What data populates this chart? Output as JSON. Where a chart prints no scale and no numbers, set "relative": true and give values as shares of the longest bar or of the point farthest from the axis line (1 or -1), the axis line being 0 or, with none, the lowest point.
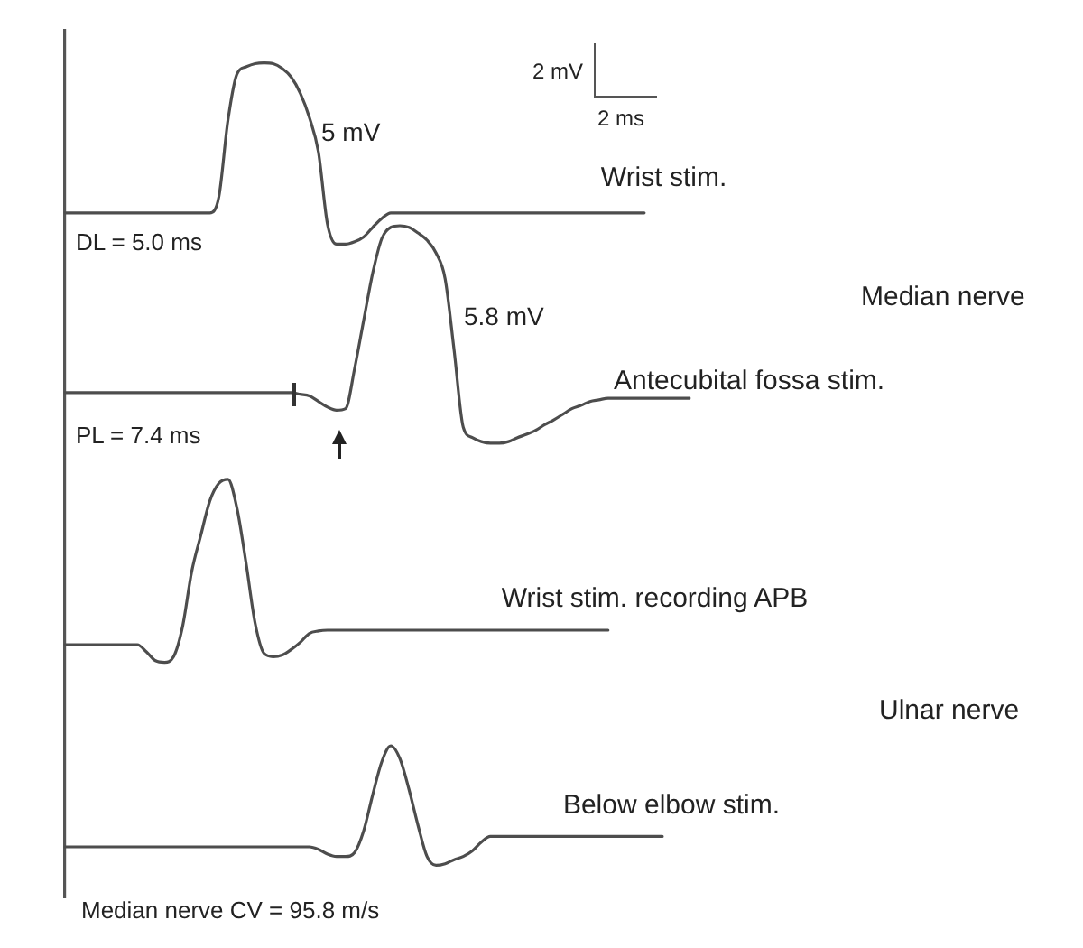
{
  "chart_data": {
    "type": "line",
    "relative": true,
    "categories": [
      null,
      null,
      null,
      null,
      null,
      null,
      null,
      null,
      null,
      null,
      null,
      null,
      null,
      null,
      null,
      null,
      null,
      null,
      null,
      null,
      null,
      null,
      null,
      null,
      null,
      null,
      null,
      null,
      null,
      null,
      null,
      null,
      null,
      null,
      null,
      null,
      null,
      null,
      null,
      null,
      null,
      null,
      null,
      null,
      null,
      null,
      null,
      null,
      null,
      null,
      null,
      null,
      null,
      null,
      null,
      null,
      null,
      null,
      null,
      null,
      null,
      null,
      null,
      null,
      null,
      null,
      null,
      null,
      null,
      null
    ],
    "series": [
      {
        "name": "Wrist stim.",
        "color": "#4d4d4d",
        "values": [
          0.813,
          0.813,
          0.813,
          0.813,
          0.813,
          0.813,
          0.813,
          0.813,
          0.813,
          0.813,
          0.813,
          0.813,
          0.813,
          0.813,
          0.813,
          0.813,
          0.813,
          0.833,
          0.928,
          0.986,
          0.995,
          0.999,
          1,
          0.999,
          0.993,
          0.982,
          0.962,
          0.932,
          0.889,
          0.799,
          0.774,
          0.774,
          0.777,
          0.783,
          0.795,
          0.806,
          0.813,
          0.813,
          0.813,
          0.813,
          0.813,
          0.813,
          0.813,
          0.813,
          0.813,
          0.813,
          0.813,
          0.813,
          0.813,
          0.813,
          0.813,
          0.813,
          0.813,
          0.813,
          0.813,
          0.813,
          0.813,
          0.813,
          0.813,
          0.813,
          0.813,
          0.813,
          0.813,
          0.813,
          0.813,
          null,
          null,
          null,
          null,
          null
        ]
      },
      {
        "name": "Antecubital fossa stim.",
        "color": "#4d4d4d",
        "values": [
          0.589,
          0.589,
          0.589,
          0.589,
          0.589,
          0.589,
          0.589,
          0.589,
          0.589,
          0.589,
          0.589,
          0.589,
          0.589,
          0.589,
          0.589,
          0.589,
          0.589,
          0.589,
          0.589,
          0.589,
          0.589,
          0.589,
          0.589,
          0.589,
          0.589,
          0.589,
          0.587,
          0.585,
          0.578,
          0.571,
          0.567,
          0.569,
          0.619,
          0.679,
          0.738,
          0.781,
          0.795,
          0.797,
          0.795,
          0.788,
          0.779,
          0.763,
          0.731,
          0.641,
          0.546,
          0.533,
          0.528,
          0.526,
          0.526,
          0.528,
          0.533,
          0.537,
          0.542,
          0.549,
          0.555,
          0.562,
          0.569,
          0.573,
          0.578,
          0.58,
          0.582,
          0.582,
          0.582,
          0.582,
          0.582,
          0.582,
          0.582,
          0.582,
          0.582,
          0.582
        ]
      },
      {
        "name": "Wrist stim. recording APB",
        "color": "#4d4d4d",
        "values": [
          0.275,
          0.275,
          0.275,
          0.275,
          0.275,
          0.275,
          0.275,
          0.275,
          0.275,
          0.266,
          0.255,
          0.253,
          0.26,
          0.298,
          0.366,
          0.411,
          0.454,
          0.476,
          0.481,
          0.445,
          0.377,
          0.302,
          0.264,
          0.26,
          0.262,
          0.269,
          0.278,
          0.289,
          0.292,
          0.293,
          0.293,
          0.293,
          0.293,
          0.293,
          0.293,
          0.293,
          0.293,
          0.293,
          0.293,
          0.293,
          0.293,
          0.293,
          0.293,
          0.293,
          0.293,
          0.293,
          0.293,
          0.293,
          0.293,
          0.293,
          0.293,
          0.293,
          0.293,
          0.293,
          0.293,
          0.293,
          0.293,
          0.293,
          0.293,
          0.293,
          0.293,
          null,
          null,
          null,
          null,
          null,
          null,
          null,
          null,
          null
        ]
      },
      {
        "name": "Below elbow stim.",
        "color": "#4d4d4d",
        "values": [
          0.023,
          0.023,
          0.023,
          0.023,
          0.023,
          0.023,
          0.023,
          0.023,
          0.023,
          0.023,
          0.023,
          0.023,
          0.023,
          0.023,
          0.023,
          0.023,
          0.023,
          0.023,
          0.023,
          0.023,
          0.023,
          0.023,
          0.023,
          0.023,
          0.023,
          0.023,
          0.023,
          0.023,
          0.02,
          0.014,
          0.011,
          0.011,
          0.016,
          0.043,
          0.088,
          0.129,
          0.149,
          0.133,
          0.095,
          0.05,
          0.011,
          0,
          0.002,
          0.007,
          0.011,
          0.018,
          0.029,
          0.036,
          0.036,
          0.036,
          0.036,
          0.036,
          0.036,
          0.036,
          0.036,
          0.036,
          0.036,
          0.036,
          0.036,
          0.036,
          0.036,
          0.036,
          0.036,
          0.036,
          0.036,
          0.036,
          0.036,
          null,
          null,
          null
        ]
      }
    ],
    "annotations": [
      "2 mV",
      "2 ms",
      "5 mV",
      "DL = 5.0 ms",
      "Median nerve",
      "5.8 mV",
      "PL = 7.4 ms",
      "Ulnar nerve",
      "Median nerve CV = 95.8 m/s"
    ]
  }
}
